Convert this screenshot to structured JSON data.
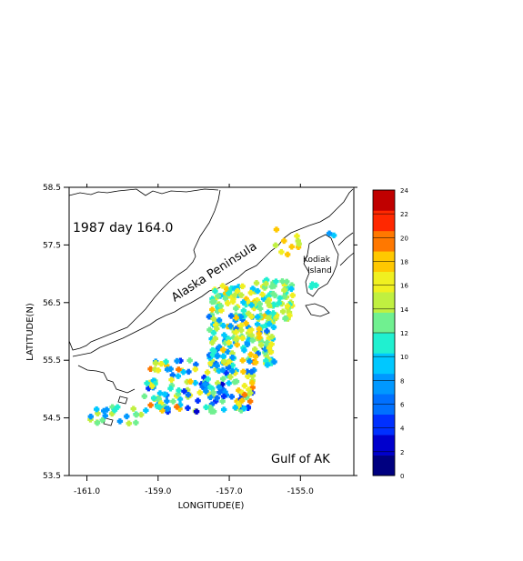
{
  "chart_data": {
    "type": "heatmap",
    "xlabel": "LONGITUDE(E)",
    "ylabel": "LATITUDE(N)",
    "xlim": [
      -161.5,
      -153.5
    ],
    "ylim": [
      53.5,
      58.5
    ],
    "x_ticks": [
      "-161.0",
      "-159.0",
      "-157.0",
      "-155.0"
    ],
    "x_tick_values": [
      -161.0,
      -159.0,
      -157.0,
      -155.0
    ],
    "y_ticks": [
      "53.5",
      "54.5",
      "55.5",
      "56.5",
      "57.5",
      "58.5"
    ],
    "y_tick_values": [
      53.5,
      54.5,
      55.5,
      56.5,
      57.5,
      58.5
    ],
    "annotations": {
      "title": "1987 day 164.0",
      "peninsula": "Alaska Peninsula",
      "kodiak_1": "Kodiak",
      "kodiak_2": "Island",
      "gulf": "Gulf of AK"
    },
    "colorbar": {
      "min": 0,
      "max": 24,
      "labels": [
        "0",
        "2",
        "4",
        "6",
        "8",
        "10",
        "12",
        "14",
        "16",
        "18",
        "20",
        "22",
        "24"
      ],
      "colors": [
        "#000080",
        "#0000cd",
        "#0030ff",
        "#0070ff",
        "#0098ff",
        "#00c8ff",
        "#20f0d0",
        "#70f090",
        "#c0f040",
        "#f0f020",
        "#ffc800",
        "#ff7800",
        "#ff2800",
        "#c00000"
      ]
    },
    "clusters": [
      {
        "lon": [
          -160.9,
          -159.3
        ],
        "lat": [
          54.4,
          54.7
        ],
        "n": 22,
        "vmin": 7,
        "vmax": 16
      },
      {
        "lon": [
          -159.4,
          -156.3
        ],
        "lat": [
          54.6,
          55.5
        ],
        "n": 170,
        "vmin": 3,
        "vmax": 20
      },
      {
        "lon": [
          -157.6,
          -155.7
        ],
        "lat": [
          55.4,
          56.3
        ],
        "n": 150,
        "vmin": 6,
        "vmax": 18
      },
      {
        "lon": [
          -157.5,
          -156.2
        ],
        "lat": [
          56.3,
          56.8
        ],
        "n": 50,
        "vmin": 9,
        "vmax": 18
      },
      {
        "lon": [
          -156.4,
          -155.2
        ],
        "lat": [
          56.2,
          56.9
        ],
        "n": 70,
        "vmin": 9,
        "vmax": 17
      },
      {
        "lon": [
          -155.8,
          -154.9
        ],
        "lat": [
          57.3,
          57.8
        ],
        "n": 10,
        "vmin": 14,
        "vmax": 19
      },
      {
        "lon": [
          -154.2,
          -154.0
        ],
        "lat": [
          57.6,
          57.7
        ],
        "n": 2,
        "vmin": 7,
        "vmax": 9
      },
      {
        "lon": [
          -154.8,
          -154.5
        ],
        "lat": [
          56.7,
          56.9
        ],
        "n": 3,
        "vmin": 10,
        "vmax": 12
      }
    ]
  }
}
